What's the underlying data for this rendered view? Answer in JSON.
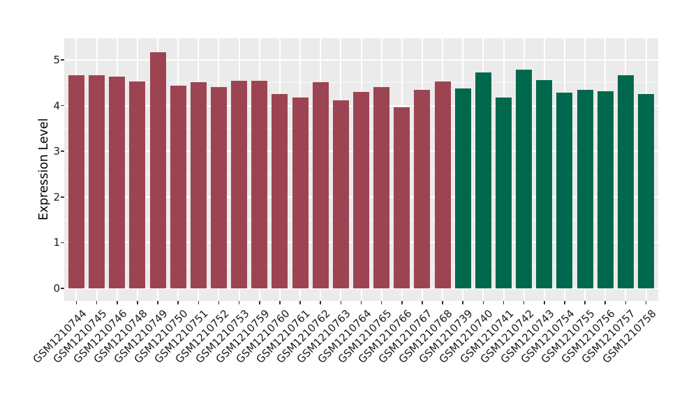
{
  "chart_data": {
    "type": "bar",
    "title": "",
    "xlabel": "",
    "ylabel": "Expression Level",
    "y_ticks": [
      0,
      1,
      2,
      3,
      4,
      5
    ],
    "y_minor_ticks": [
      0.5,
      1.5,
      2.5,
      3.5,
      4.5
    ],
    "ylim": [
      -0.2,
      5.5
    ],
    "grid": "white major and minor horizontal lines, white vertical lines at category centers, on gray panel",
    "legend": "none",
    "panel_bg": "#EBEBEB",
    "gridline_color": "#FFFFFF",
    "axis_text_color": "#1A1A1A",
    "tick_mark_color": "#333333",
    "group_colors": {
      "maroon": "#9D4452",
      "green": "#00684C"
    },
    "bars": [
      {
        "label": "GSM1210744",
        "value": 4.66,
        "group": "maroon"
      },
      {
        "label": "GSM1210745",
        "value": 4.66,
        "group": "maroon"
      },
      {
        "label": "GSM1210746",
        "value": 4.63,
        "group": "maroon"
      },
      {
        "label": "GSM1210748",
        "value": 4.52,
        "group": "maroon"
      },
      {
        "label": "GSM1210749",
        "value": 5.17,
        "group": "maroon"
      },
      {
        "label": "GSM1210750",
        "value": 4.43,
        "group": "maroon"
      },
      {
        "label": "GSM1210751",
        "value": 4.51,
        "group": "maroon"
      },
      {
        "label": "GSM1210752",
        "value": 4.4,
        "group": "maroon"
      },
      {
        "label": "GSM1210753",
        "value": 4.54,
        "group": "maroon"
      },
      {
        "label": "GSM1210759",
        "value": 4.54,
        "group": "maroon"
      },
      {
        "label": "GSM1210760",
        "value": 4.25,
        "group": "maroon"
      },
      {
        "label": "GSM1210761",
        "value": 4.18,
        "group": "maroon"
      },
      {
        "label": "GSM1210762",
        "value": 4.51,
        "group": "maroon"
      },
      {
        "label": "GSM1210763",
        "value": 4.12,
        "group": "maroon"
      },
      {
        "label": "GSM1210764",
        "value": 4.3,
        "group": "maroon"
      },
      {
        "label": "GSM1210765",
        "value": 4.41,
        "group": "maroon"
      },
      {
        "label": "GSM1210766",
        "value": 3.96,
        "group": "maroon"
      },
      {
        "label": "GSM1210767",
        "value": 4.34,
        "group": "maroon"
      },
      {
        "label": "GSM1210768",
        "value": 4.52,
        "group": "maroon"
      },
      {
        "label": "GSM1210739",
        "value": 4.37,
        "group": "green"
      },
      {
        "label": "GSM1210740",
        "value": 4.72,
        "group": "green"
      },
      {
        "label": "GSM1210741",
        "value": 4.18,
        "group": "green"
      },
      {
        "label": "GSM1210742",
        "value": 4.79,
        "group": "green"
      },
      {
        "label": "GSM1210743",
        "value": 4.56,
        "group": "green"
      },
      {
        "label": "GSM1210754",
        "value": 4.29,
        "group": "green"
      },
      {
        "label": "GSM1210755",
        "value": 4.34,
        "group": "green"
      },
      {
        "label": "GSM1210756",
        "value": 4.31,
        "group": "green"
      },
      {
        "label": "GSM1210757",
        "value": 4.67,
        "group": "green"
      },
      {
        "label": "GSM1210758",
        "value": 4.26,
        "group": "green"
      }
    ]
  }
}
